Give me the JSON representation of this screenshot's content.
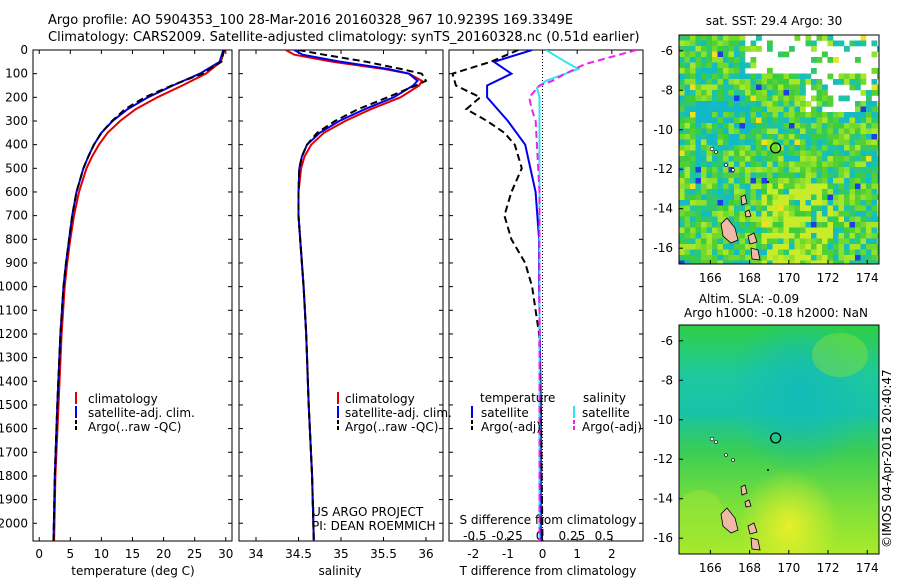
{
  "header": {
    "line1": "Argo profile: AO 5904353_100 28-Mar-2016 20160328_967 10.9239S 169.3349E",
    "line2": "Climatology: CARS2009. Satellite-adjusted climatology: synTS_20160328.nc (0.51d earlier)"
  },
  "colors": {
    "climatology": "#e00000",
    "satellite": "#0000ee",
    "argo": "#000000",
    "sat_salinity": "#33e6ee",
    "argo_salinity": "#ee22ee"
  },
  "chart_data": [
    {
      "type": "line",
      "name": "temperature-profile",
      "xlabel": "temperature (deg C)",
      "xlim": [
        -1,
        31
      ],
      "ylim": [
        2075,
        0
      ],
      "x_ticks": [
        "0",
        "5",
        "10",
        "15",
        "20",
        "25",
        "30"
      ],
      "y_ticks": [
        "0",
        "100",
        "200",
        "300",
        "400",
        "500",
        "600",
        "700",
        "800",
        "900",
        "1000",
        "1100",
        "1200",
        "1300",
        "1400",
        "1500",
        "1600",
        "1700",
        "1800",
        "1900",
        "2000"
      ],
      "legend": [
        "climatology",
        "satellite-adj. clim.",
        "Argo(..raw -QC)"
      ],
      "series": [
        {
          "name": "climatology",
          "depth": [
            0,
            50,
            100,
            150,
            200,
            250,
            300,
            350,
            400,
            450,
            500,
            600,
            700,
            800,
            900,
            1000,
            1200,
            1500,
            1800,
            2075
          ],
          "values": [
            29.8,
            29.2,
            26.8,
            23.0,
            19.0,
            15.5,
            13.0,
            11.0,
            9.6,
            8.5,
            7.6,
            6.4,
            5.6,
            5.0,
            4.5,
            4.1,
            3.6,
            3.1,
            2.6,
            2.4
          ]
        },
        {
          "name": "satellite-adj. clim.",
          "depth": [
            0,
            50,
            100,
            150,
            200,
            250,
            300,
            350,
            400,
            450,
            500,
            600,
            700,
            800,
            900,
            1000,
            1200,
            1500,
            1800,
            2075
          ],
          "values": [
            29.6,
            29.0,
            25.8,
            21.5,
            17.5,
            14.2,
            11.8,
            10.0,
            8.8,
            7.9,
            7.1,
            6.0,
            5.3,
            4.8,
            4.3,
            3.9,
            3.4,
            2.9,
            2.5,
            2.3
          ]
        },
        {
          "name": "Argo(..raw -QC)",
          "depth": [
            0,
            50,
            100,
            150,
            200,
            250,
            300,
            350,
            400,
            450,
            500,
            600,
            700,
            800,
            900,
            1000,
            1200,
            1500,
            1800,
            2075
          ],
          "values": [
            29.7,
            29.3,
            26.2,
            21.3,
            17.0,
            13.8,
            11.7,
            10.0,
            8.8,
            7.9,
            7.1,
            6.0,
            5.3,
            4.8,
            4.3,
            3.9,
            3.4,
            2.9,
            2.5,
            2.3
          ]
        }
      ]
    },
    {
      "type": "line",
      "name": "salinity-profile",
      "xlabel": "salinity",
      "xlim": [
        33.8,
        36.2
      ],
      "ylim": [
        2075,
        0
      ],
      "x_ticks": [
        "34",
        "34.5",
        "35",
        "35.5",
        "36"
      ],
      "legend": [
        "climatology",
        "satellite-adj. clim.",
        "Argo(..raw -QC)"
      ],
      "annotation": [
        "US ARGO PROJECT",
        "PI: DEAN ROEMMICH"
      ],
      "series": [
        {
          "name": "climatology",
          "depth": [
            0,
            20,
            50,
            80,
            100,
            130,
            150,
            200,
            250,
            300,
            350,
            400,
            450,
            500,
            600,
            700,
            800,
            900,
            1000,
            1200,
            1500,
            1800,
            2075
          ],
          "values": [
            34.35,
            34.45,
            34.9,
            35.5,
            35.8,
            35.95,
            35.92,
            35.7,
            35.35,
            35.05,
            34.8,
            34.65,
            34.57,
            34.53,
            34.5,
            34.5,
            34.52,
            34.54,
            34.56,
            34.59,
            34.62,
            34.66,
            34.68
          ]
        },
        {
          "name": "satellite-adj. clim.",
          "depth": [
            0,
            20,
            50,
            80,
            100,
            130,
            150,
            200,
            250,
            300,
            350,
            400,
            450,
            500,
            600,
            700,
            800,
            900,
            1000,
            1200,
            1500,
            1800,
            2075
          ],
          "values": [
            34.45,
            34.55,
            35.0,
            35.55,
            35.8,
            35.9,
            35.85,
            35.62,
            35.28,
            34.98,
            34.75,
            34.6,
            34.54,
            34.51,
            34.5,
            34.5,
            34.52,
            34.54,
            34.56,
            34.59,
            34.62,
            34.66,
            34.68
          ]
        },
        {
          "name": "Argo(..raw -QC)",
          "depth": [
            0,
            20,
            50,
            80,
            100,
            130,
            150,
            200,
            250,
            300,
            350,
            400,
            450,
            500,
            600,
            700,
            800,
            900,
            1000,
            1200,
            1500,
            1800,
            2075
          ],
          "values": [
            34.5,
            34.8,
            35.3,
            35.7,
            35.95,
            36.0,
            35.88,
            35.55,
            35.2,
            34.93,
            34.72,
            34.6,
            34.54,
            34.51,
            34.5,
            34.5,
            34.52,
            34.54,
            34.56,
            34.59,
            34.62,
            34.66,
            34.68
          ]
        }
      ]
    },
    {
      "type": "line",
      "name": "difference-profile",
      "xlabel": "T difference from climatology",
      "xlabel_top": "S difference from climatology",
      "xlim": [
        -2.7,
        2.9
      ],
      "ylim": [
        2075,
        0
      ],
      "x_ticks": [
        "-2",
        "-1",
        "0",
        "1",
        "2"
      ],
      "x_ticks_top": [
        "-0.5",
        "-0.25",
        "0",
        "0.25",
        "0.5"
      ],
      "legend_t": [
        "temperature",
        "satellite",
        "Argo(-adj)"
      ],
      "legend_s": [
        "salinity",
        "satellite",
        "Argo(-adj)"
      ],
      "series": [
        {
          "name": "T satellite",
          "depth": [
            0,
            50,
            80,
            100,
            150,
            200,
            300,
            400,
            600,
            800,
            1000,
            1500,
            2075
          ],
          "values": [
            -0.3,
            -1.4,
            -1.1,
            -0.9,
            -1.6,
            -1.6,
            -1.0,
            -0.5,
            -0.2,
            -0.1,
            -0.1,
            -0.05,
            -0.05
          ]
        },
        {
          "name": "T Argo(-adj)",
          "depth": [
            0,
            50,
            100,
            150,
            200,
            250,
            300,
            350,
            400,
            500,
            600,
            700,
            800,
            900,
            1000,
            1200,
            1500,
            2075
          ],
          "values": [
            -0.7,
            -1.5,
            -2.6,
            -2.5,
            -1.8,
            -2.2,
            -1.6,
            -1.1,
            -0.8,
            -0.6,
            -0.9,
            -1.1,
            -0.9,
            -0.5,
            -0.3,
            -0.1,
            -0.05,
            0
          ]
        },
        {
          "name": "S satellite",
          "depth": [
            0,
            50,
            80,
            100,
            130,
            160,
            200,
            300,
            400,
            600,
            800,
            1000,
            1500,
            1900,
            2075
          ],
          "values": [
            0.05,
            0.2,
            0.3,
            0.2,
            0.05,
            -0.02,
            0.0,
            0.0,
            0.0,
            0.0,
            0.0,
            0.0,
            0.0,
            0.0,
            0.0
          ]
        },
        {
          "name": "S Argo(-adj)",
          "depth": [
            0,
            30,
            60,
            100,
            130,
            150,
            200,
            250,
            300,
            400,
            500,
            600,
            800,
            1000,
            2075
          ],
          "values": [
            0.75,
            0.55,
            0.35,
            0.2,
            0.1,
            0.0,
            -0.08,
            -0.06,
            -0.03,
            -0.02,
            -0.01,
            0.0,
            0.0,
            0.0,
            0.0
          ]
        }
      ]
    },
    {
      "type": "heatmap",
      "name": "sst-map",
      "title": "sat. SST: 29.4 Argo: 30",
      "x_ticks": [
        "166",
        "168",
        "170",
        "172",
        "174"
      ],
      "y_ticks": [
        "-6",
        "-8",
        "-10",
        "-12",
        "-14",
        "-16"
      ],
      "xlim": [
        164.4,
        174.6
      ],
      "ylim": [
        -16.8,
        -5.2
      ],
      "marker": {
        "lon": 169.33,
        "lat": -10.92
      }
    },
    {
      "type": "heatmap",
      "name": "sla-map",
      "title_line1": "Altim. SLA: -0.09",
      "title_line2": "Argo h1000: -0.18 h2000: NaN",
      "x_ticks": [
        "166",
        "168",
        "170",
        "172",
        "174"
      ],
      "y_ticks": [
        "-6",
        "-8",
        "-10",
        "-12",
        "-14",
        "-16"
      ],
      "xlim": [
        164.4,
        174.6
      ],
      "ylim": [
        -16.8,
        -5.2
      ],
      "marker": {
        "lon": 169.33,
        "lat": -10.92
      }
    }
  ],
  "footer": {
    "credit": "©IMOS 04-Apr-2016 20:40:47"
  }
}
